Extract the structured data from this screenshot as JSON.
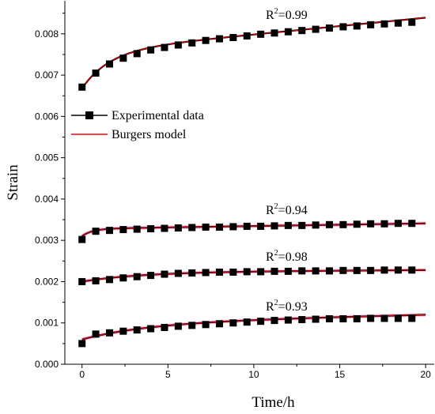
{
  "chart_data": {
    "type": "scatter",
    "title": "",
    "xlabel": "Time/h",
    "ylabel": "Strain",
    "xlim": [
      -1,
      20.5
    ],
    "ylim": [
      0,
      0.0088
    ],
    "xticks": [
      0,
      5,
      10,
      15,
      20
    ],
    "yticks": [
      0.0,
      0.001,
      0.002,
      0.003,
      0.004,
      0.005,
      0.006,
      0.007,
      0.008
    ],
    "ytick_labels": [
      "0.000",
      "0.001",
      "0.002",
      "0.003",
      "0.004",
      "0.005",
      "0.006",
      "0.007",
      "0.008"
    ],
    "grid": false,
    "legend": {
      "position": "upper-left",
      "entries": [
        {
          "label": "Experimental data",
          "marker": "square",
          "color": "#000000"
        },
        {
          "label": "Burgers model",
          "marker": "line",
          "color": "#ff0000"
        }
      ]
    },
    "colors": {
      "data": "#000000",
      "model": "#e00000",
      "band": "#f4b8e8"
    },
    "series": [
      {
        "r2_prefix": "R",
        "r2_sup": "2",
        "r2_value": "=0.99",
        "x": [
          0,
          0.8,
          1.6,
          2.4,
          3.2,
          4.0,
          4.8,
          5.6,
          6.4,
          7.2,
          8.0,
          8.8,
          9.6,
          10.4,
          11.2,
          12.0,
          12.8,
          13.6,
          14.4,
          15.2,
          16.0,
          16.8,
          17.6,
          18.4,
          19.2
        ],
        "y": [
          0.00671,
          0.00705,
          0.00727,
          0.00741,
          0.00752,
          0.00761,
          0.00767,
          0.00773,
          0.00778,
          0.00784,
          0.00788,
          0.00791,
          0.00795,
          0.00799,
          0.00802,
          0.00805,
          0.00808,
          0.00811,
          0.00814,
          0.00817,
          0.00819,
          0.00822,
          0.00824,
          0.00826,
          0.00828
        ],
        "fit": {
          "a": 0.00668,
          "b": 0.0009,
          "tau": 1.6,
          "c": 4.05e-05
        }
      },
      {
        "r2_prefix": "R",
        "r2_sup": "2",
        "r2_value": "=0.94",
        "x": [
          0,
          0.8,
          1.6,
          2.4,
          3.2,
          4.0,
          4.8,
          5.6,
          6.4,
          7.2,
          8.0,
          8.8,
          9.6,
          10.4,
          11.2,
          12.0,
          12.8,
          13.6,
          14.4,
          15.2,
          16.0,
          16.8,
          17.6,
          18.4,
          19.2
        ],
        "y": [
          0.00302,
          0.00322,
          0.00324,
          0.00326,
          0.00327,
          0.00328,
          0.00329,
          0.0033,
          0.00331,
          0.00332,
          0.00332,
          0.00333,
          0.00334,
          0.00334,
          0.00335,
          0.00336,
          0.00336,
          0.00337,
          0.00338,
          0.00338,
          0.00339,
          0.0034,
          0.0034,
          0.00341,
          0.00341
        ],
        "fit": {
          "a": 0.0031,
          "b": 0.00018,
          "tau": 0.6,
          "c": 6.5e-06
        }
      },
      {
        "r2_prefix": "R",
        "r2_sup": "2",
        "r2_value": "=0.98",
        "x": [
          0,
          0.8,
          1.6,
          2.4,
          3.2,
          4.0,
          4.8,
          5.6,
          6.4,
          7.2,
          8.0,
          8.8,
          9.6,
          10.4,
          11.2,
          12.0,
          12.8,
          13.6,
          14.4,
          15.2,
          16.0,
          16.8,
          17.6,
          18.4,
          19.2
        ],
        "y": [
          0.002,
          0.00202,
          0.00205,
          0.00209,
          0.00212,
          0.00215,
          0.00218,
          0.0022,
          0.00221,
          0.00222,
          0.00223,
          0.00223,
          0.00224,
          0.00224,
          0.00225,
          0.00225,
          0.00226,
          0.00226,
          0.00226,
          0.00227,
          0.00227,
          0.00227,
          0.00228,
          0.00228,
          0.00228
        ],
        "fit": {
          "a": 0.002,
          "b": 0.00023,
          "tau": 3.5,
          "c": 2.5e-06
        }
      },
      {
        "r2_prefix": "R",
        "r2_sup": "2",
        "r2_value": "=0.93",
        "x": [
          0,
          0.8,
          1.6,
          2.4,
          3.2,
          4.0,
          4.8,
          5.6,
          6.4,
          7.2,
          8.0,
          8.8,
          9.6,
          10.4,
          11.2,
          12.0,
          12.8,
          13.6,
          14.4,
          15.2,
          16.0,
          16.8,
          17.6,
          18.4,
          19.2
        ],
        "y": [
          0.0005,
          0.00073,
          0.00076,
          0.0008,
          0.00083,
          0.00086,
          0.00089,
          0.00092,
          0.00094,
          0.00096,
          0.00098,
          0.001,
          0.00102,
          0.00104,
          0.00106,
          0.00107,
          0.00108,
          0.00109,
          0.0011,
          0.0011,
          0.0011,
          0.00111,
          0.00111,
          0.00111,
          0.00111
        ],
        "fit": {
          "a": 0.0006,
          "b": 0.0004,
          "tau": 4.0,
          "c": 1e-05
        }
      }
    ]
  }
}
